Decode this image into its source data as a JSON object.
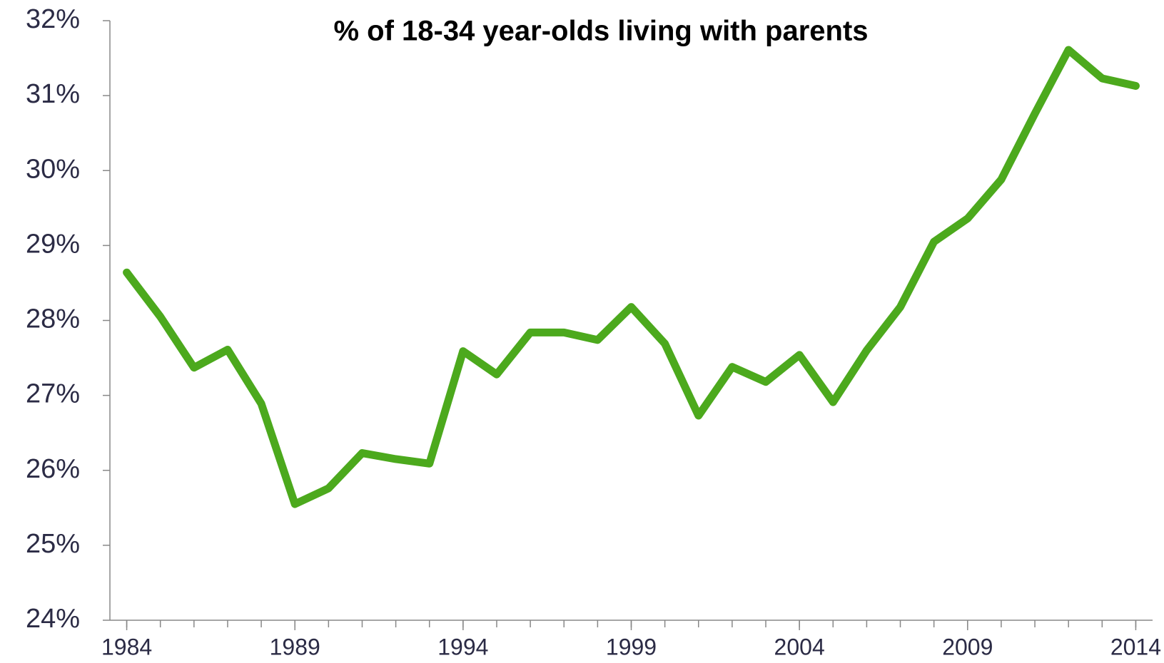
{
  "chart_data": {
    "type": "line",
    "title": "% of 18-34 year-olds living with parents",
    "x": [
      1984,
      1985,
      1986,
      1987,
      1988,
      1989,
      1990,
      1991,
      1992,
      1993,
      1994,
      1995,
      1996,
      1997,
      1998,
      1999,
      2000,
      2001,
      2002,
      2003,
      2004,
      2005,
      2006,
      2007,
      2008,
      2009,
      2010,
      2011,
      2012,
      2013,
      2014
    ],
    "series": [
      {
        "color": "#4ca91d",
        "values": [
          28.64,
          28.05,
          27.37,
          27.61,
          26.89,
          25.55,
          25.76,
          26.23,
          26.15,
          26.09,
          27.59,
          27.28,
          27.84,
          27.84,
          27.74,
          28.18,
          27.69,
          26.73,
          27.38,
          27.18,
          27.54,
          26.91,
          27.6,
          28.18,
          29.05,
          29.36,
          29.88,
          30.76,
          31.61,
          31.23,
          31.13
        ]
      }
    ],
    "xlim": [
      1983.5,
      2014.5
    ],
    "xticks": [
      1984,
      1989,
      1994,
      1999,
      2004,
      2009,
      2014
    ],
    "ylim": [
      24,
      32
    ],
    "yticks": [
      {
        "value": 24,
        "label": "24%"
      },
      {
        "value": 25,
        "label": "25%"
      },
      {
        "value": 26,
        "label": "26%"
      },
      {
        "value": 27,
        "label": "27%"
      },
      {
        "value": 28,
        "label": "28%"
      },
      {
        "value": 29,
        "label": "29%"
      },
      {
        "value": 30,
        "label": "30%"
      },
      {
        "value": 31,
        "label": "31%"
      },
      {
        "value": 32,
        "label": "32%"
      }
    ]
  }
}
